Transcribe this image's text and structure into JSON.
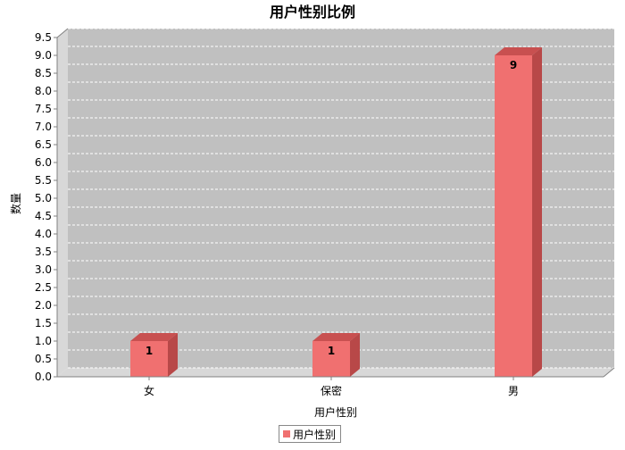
{
  "chart_data": {
    "type": "bar",
    "title": "用户性别比例",
    "xlabel": "用户性别",
    "ylabel": "数量",
    "categories": [
      "女",
      "保密",
      "男"
    ],
    "series": [
      {
        "name": "用户性别",
        "values": [
          1,
          1,
          9
        ]
      }
    ],
    "ylim": [
      0,
      9.5
    ],
    "ytick_step": 0.5,
    "data_labels": [
      "1",
      "1",
      "9"
    ],
    "grid": true,
    "legend": "bottom-center",
    "three_d": true
  },
  "colors": {
    "bar_face": "#f07070",
    "bar_top": "#c85050",
    "bar_side": "#b84848",
    "plot_bg": "#c0c0c0",
    "plot_wall": "#d8d8d8",
    "grid": "#ffffff"
  }
}
